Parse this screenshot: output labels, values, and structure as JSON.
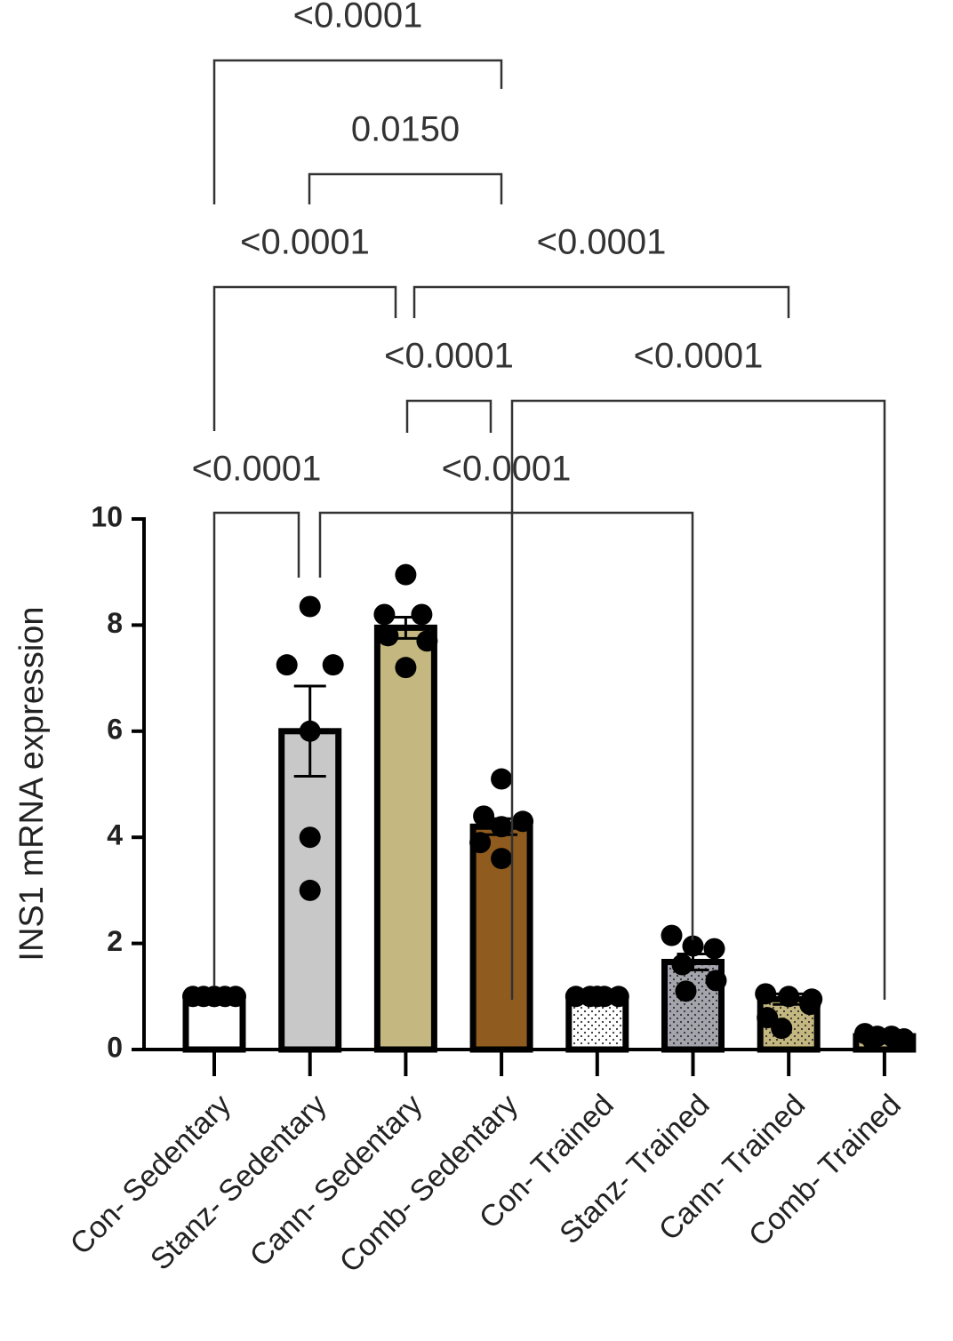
{
  "chart_data": {
    "type": "bar",
    "y_label": "INS1 mRNA expression",
    "categories": [
      "Con- Sedentary",
      "Stanz- Sedentary",
      "Cann- Sedentary",
      "Comb- Sedentary",
      "Con- Trained",
      "Stanz- Trained",
      "Cann- Trained",
      "Comb- Trained"
    ],
    "values": [
      1.0,
      6.0,
      7.95,
      4.2,
      1.0,
      1.65,
      0.95,
      0.25
    ],
    "errors": [
      0,
      0.85,
      0.2,
      0.15,
      0,
      0.15,
      0.1,
      0.05
    ],
    "colors": [
      "#ffffff",
      "#c8c8c8",
      "#c4b780",
      "#8f5b1f",
      "#ffffff",
      "#a4a4ac",
      "#c4b780",
      "#c4b780"
    ],
    "dotted": [
      false,
      false,
      false,
      false,
      true,
      true,
      true,
      false
    ],
    "points": [
      [
        1,
        1,
        1,
        1,
        1,
        1
      ],
      [
        8.35,
        7.25,
        7.25,
        6.0,
        4.0,
        3.0
      ],
      [
        8.95,
        8.2,
        8.2,
        7.8,
        7.7,
        7.2
      ],
      [
        5.1,
        4.4,
        4.3,
        4.2,
        3.9,
        3.6
      ],
      [
        1,
        1,
        1,
        1,
        1,
        1
      ],
      [
        2.15,
        1.95,
        1.9,
        1.6,
        1.3,
        1.1
      ],
      [
        1.05,
        1.0,
        0.95,
        0.85,
        0.6,
        0.4
      ],
      [
        0.3,
        0.25,
        0.25,
        0.2,
        0.2,
        0.15
      ]
    ],
    "comparisons": [
      {
        "from": 0,
        "to": 3,
        "label": "<0.0001"
      },
      {
        "from": 1,
        "to": 3,
        "label": "0.0150"
      },
      {
        "from": 0,
        "to": 2,
        "label": "<0.0001"
      },
      {
        "from": 2,
        "to": 6,
        "label": "<0.0001"
      },
      {
        "from": 2,
        "to": 3,
        "label": "<0.0001"
      },
      {
        "from": 3,
        "to": 7,
        "label": "<0.0001"
      },
      {
        "from": 0,
        "to": 1,
        "label": "<0.0001"
      },
      {
        "from": 1,
        "to": 5,
        "label": "<0.0001"
      }
    ],
    "ylim": [
      0,
      10
    ],
    "yticks": [
      0,
      2,
      4,
      6,
      8,
      10
    ]
  }
}
